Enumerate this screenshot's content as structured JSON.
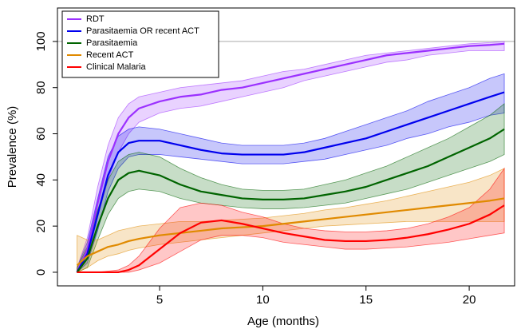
{
  "chart_data": {
    "type": "band-line",
    "xlabel": "Age (months)",
    "ylabel": "Prevalence (%)",
    "x": [
      1,
      1.5,
      2,
      2.5,
      3,
      3.5,
      4,
      5,
      6,
      7,
      8,
      9,
      10,
      11,
      12,
      13,
      14,
      15,
      16,
      17,
      18,
      19,
      20,
      21,
      21.7
    ],
    "xlim": [
      0.05,
      22.2
    ],
    "xticks": [
      5,
      10,
      15,
      20
    ],
    "ylim": [
      -5.9,
      114.5
    ],
    "yticks": [
      0,
      20,
      40,
      60,
      80,
      100
    ],
    "hline": 100,
    "legend": "top-left",
    "series": [
      {
        "name": "RDT",
        "color": "#9b30ff",
        "values": [
          0,
          10,
          30,
          48,
          60,
          67,
          71,
          74,
          76,
          77,
          79,
          80,
          82,
          84,
          86,
          88,
          90,
          92,
          94,
          95,
          96,
          97,
          98,
          98.5,
          99
        ],
        "upper": [
          2,
          15,
          37,
          55,
          67,
          73,
          76,
          78,
          80,
          81,
          82,
          83,
          85,
          87,
          88,
          90,
          92,
          94,
          95,
          96,
          97,
          98,
          99,
          99.5,
          100
        ],
        "lower": [
          0,
          6,
          24,
          40,
          52,
          60,
          65,
          69,
          71,
          72,
          74,
          76,
          78,
          80,
          83,
          85,
          87,
          89,
          91,
          92,
          94,
          95,
          96,
          96,
          96
        ]
      },
      {
        "name": "Parasitaemia OR recent ACT",
        "color": "#0000ee",
        "values": [
          0,
          8,
          25,
          42,
          52,
          56,
          57,
          57,
          55,
          53,
          51.5,
          51,
          51,
          51,
          52,
          54,
          56,
          58,
          61,
          64,
          67,
          70,
          73,
          76,
          78
        ],
        "upper": [
          2,
          13,
          32,
          50,
          59,
          62,
          63,
          62,
          60,
          58,
          56,
          55,
          55,
          55,
          56,
          58,
          61,
          64,
          67,
          70,
          74,
          77,
          80,
          84,
          86
        ],
        "lower": [
          0,
          4,
          18,
          35,
          45,
          50,
          51,
          51,
          50,
          49,
          48,
          47,
          47,
          47,
          48,
          49,
          51,
          53,
          55,
          58,
          60,
          63,
          65,
          68,
          69
        ]
      },
      {
        "name": "Parasitaemia",
        "color": "#006400",
        "values": [
          0,
          6,
          20,
          32,
          40,
          43,
          44,
          42,
          38,
          35,
          33.5,
          32,
          31.5,
          31.5,
          32,
          33.5,
          35,
          37,
          40,
          43,
          46,
          50,
          54,
          58,
          62
        ],
        "upper": [
          2,
          11,
          27,
          40,
          48,
          51,
          52,
          50,
          45,
          41,
          38,
          36,
          35.5,
          35.5,
          36,
          38,
          40,
          43,
          46,
          50,
          54,
          58,
          63,
          68,
          73
        ],
        "lower": [
          0,
          2,
          14,
          25,
          32,
          35,
          36,
          35,
          32,
          30,
          29,
          28,
          27.5,
          27.5,
          28,
          29,
          30,
          32,
          34,
          36,
          39,
          42,
          45,
          48,
          51
        ]
      },
      {
        "name": "Recent ACT",
        "color": "#e08a00",
        "values": [
          3,
          7,
          9,
          11,
          12,
          13.5,
          14.5,
          16,
          17,
          18,
          19,
          19.5,
          20,
          21,
          22,
          23,
          24,
          25,
          26,
          27,
          28,
          29,
          30,
          31,
          32
        ],
        "upper": [
          16,
          14,
          14,
          16,
          18,
          19,
          20,
          21,
          22,
          22,
          22.5,
          23,
          23.5,
          24.5,
          25.5,
          27,
          28,
          29.5,
          31,
          33,
          35,
          37,
          39,
          42,
          45
        ],
        "lower": [
          0,
          2,
          5,
          7,
          8,
          9.5,
          10.5,
          12,
          13,
          14,
          15,
          16,
          17,
          18,
          19,
          20,
          20.5,
          21,
          21.5,
          22,
          22,
          22,
          22,
          22,
          22
        ]
      },
      {
        "name": "Clinical Malaria",
        "color": "#ff0000",
        "values": [
          0,
          0,
          0,
          0,
          0,
          1,
          3,
          10,
          17,
          21.5,
          22.5,
          21,
          19,
          17,
          15.5,
          14,
          13.5,
          13.5,
          14,
          15,
          16.5,
          18.5,
          21,
          25,
          29
        ],
        "upper": [
          0,
          0,
          0,
          0.5,
          1,
          3,
          7,
          19,
          28,
          30,
          29,
          26,
          24,
          21,
          19,
          18,
          17.5,
          17.5,
          18,
          19,
          21,
          24,
          28,
          36,
          45
        ],
        "lower": [
          0,
          0,
          0,
          0,
          0,
          0,
          1,
          4,
          9,
          14,
          16,
          16,
          15,
          13,
          12,
          11,
          10,
          10,
          10.5,
          11,
          12,
          13,
          14.5,
          16,
          17
        ]
      }
    ]
  }
}
